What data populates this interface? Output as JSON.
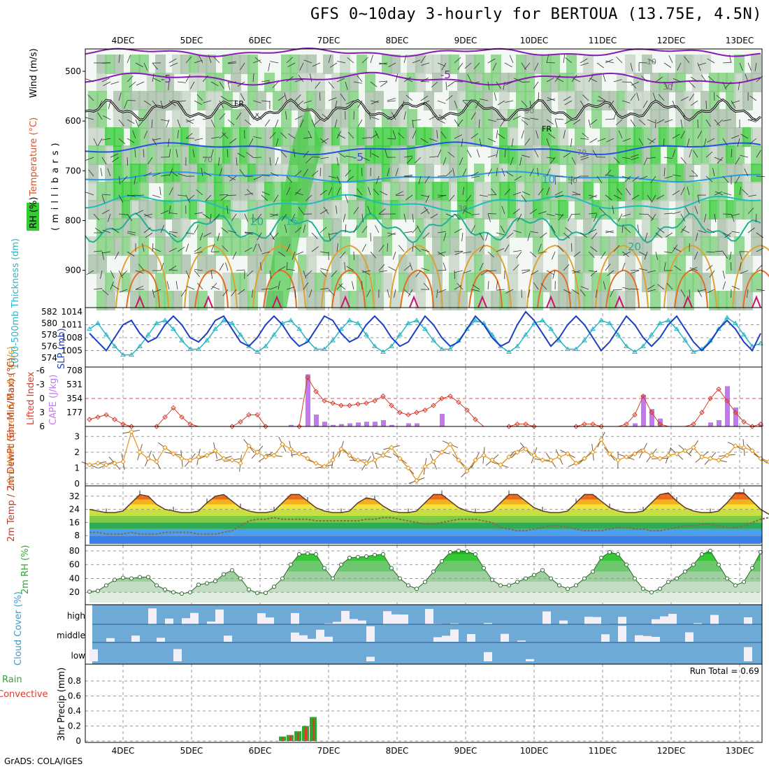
{
  "title": "GFS 0~10day 3-hourly for BERTOUA (13.75E, 4.5N)",
  "footer": "GrADS: COLA/IGES",
  "run_total_label": "Run Total = 0.69",
  "colors": {
    "rh_green": "#33cc33",
    "wind_purple": "#8a1ab8",
    "frz_black": "#000000",
    "slp_blue": "#1a3fbf",
    "thick_cyan": "#2bb5c6",
    "li_red": "#d83a2a",
    "cape_violet": "#c278f0",
    "wind10_orange": "#e0931a",
    "cloud_blue": "#6fa9d6",
    "precip_green": "#2ea82e",
    "precip_red": "#e03a2a"
  },
  "chart_data": [
    {
      "type": "heatmap",
      "id": "upper-air",
      "ylabel_parts": [
        "RH (%)",
        "Temperature (°C)",
        "Wind (m/s)"
      ],
      "ylabel_units": "(millibars)",
      "xticks": [
        "4DEC",
        "5DEC",
        "6DEC",
        "7DEC",
        "8DEC",
        "9DEC",
        "10DEC",
        "11DEC",
        "12DEC",
        "13DEC"
      ],
      "yticks": [
        500,
        600,
        700,
        800,
        900
      ],
      "contour_labels": [
        "-5",
        "-5",
        "FR",
        "FR",
        "-5",
        "10",
        "20",
        "15",
        "20",
        "30",
        "30",
        "50",
        "70",
        "70",
        "10",
        "30"
      ]
    },
    {
      "type": "line",
      "id": "slp-thickness",
      "ylabel_left": "1000-500mb Thickness (dm)",
      "ylabel_right": "SLP (mb)",
      "yticks_left": [
        574,
        576,
        578,
        580,
        582
      ],
      "yticks_right": [
        1005,
        1008,
        1011,
        1014
      ],
      "series": [
        {
          "name": "SLP (mb)",
          "values": [
            1009,
            1007,
            1005,
            1008,
            1011,
            1012,
            1009,
            1007,
            1008,
            1011,
            1013,
            1011,
            1008,
            1007,
            1009,
            1012,
            1013,
            1010,
            1007,
            1006,
            1008,
            1011,
            1013,
            1011,
            1008,
            1006,
            1007,
            1010,
            1013,
            1012,
            1009,
            1007,
            1008,
            1011,
            1013,
            1011,
            1008,
            1006,
            1007,
            1010,
            1013,
            1011,
            1008,
            1006,
            1007,
            1010,
            1013,
            1011,
            1008,
            1006,
            1007,
            1011,
            1014,
            1012,
            1009,
            1006,
            1008,
            1011,
            1013,
            1011,
            1008,
            1005,
            1007,
            1010,
            1013,
            1011,
            1008,
            1006,
            1008,
            1011,
            1013,
            1010,
            1007,
            1005,
            1007,
            1010,
            1012,
            1010,
            1007,
            1005,
            1009
          ]
        },
        {
          "name": "1000-500mb Thickness (dm)",
          "values": [
            579,
            580,
            578,
            576,
            574.5,
            574.5,
            576,
            578,
            580,
            580.5,
            579,
            577,
            575.5,
            575.5,
            577,
            579,
            580.5,
            580,
            578,
            576,
            575,
            576,
            578,
            580,
            580.5,
            579,
            577,
            575.5,
            575.5,
            577,
            579,
            580.5,
            580,
            578,
            576,
            575,
            576,
            578,
            580,
            580.5,
            579,
            577,
            575.5,
            575.5,
            577,
            579,
            580.5,
            580,
            578,
            576,
            575,
            576,
            578,
            580,
            580.5,
            579,
            577,
            575.5,
            575.5,
            577,
            579,
            580.5,
            580,
            578,
            576,
            575,
            576,
            578,
            580,
            580.5,
            579,
            577,
            575,
            575.5,
            577,
            579,
            581,
            580,
            578,
            576,
            576.5
          ]
        }
      ]
    },
    {
      "type": "bar",
      "id": "li-cape",
      "ylabel_left": "Lifted Index",
      "ylabel_right": "CAPE (J/kg)",
      "yticks_left": [
        -6,
        -3,
        0,
        3,
        6
      ],
      "yticks_right": [
        177,
        354,
        531,
        708
      ],
      "series": [
        {
          "name": "Lifted Index",
          "values": [
            4.5,
            4,
            3.5,
            4.5,
            5.5,
            6,
            6.5,
            7,
            6,
            4,
            2,
            4,
            5.5,
            6.5,
            7,
            7,
            6.5,
            6,
            5,
            3.5,
            3.5,
            6,
            7,
            7,
            7,
            6,
            -4.5,
            -1.5,
            0.5,
            1,
            1.5,
            1.5,
            1.2,
            1,
            0.5,
            -0.5,
            1.5,
            3,
            3.5,
            3,
            2.5,
            1.5,
            0,
            -0.5,
            0.8,
            2.5,
            4.5,
            6.5,
            7,
            6.5,
            6,
            5.5,
            5.5,
            6,
            6.5,
            7,
            7,
            6.5,
            6,
            5.5,
            5.5,
            6,
            6.5,
            6.5,
            5.5,
            3.5,
            -0.5,
            3,
            5.5,
            6.5,
            7,
            6.5,
            5.5,
            3,
            0,
            -2,
            0.5,
            3,
            5,
            6,
            5.5
          ]
        },
        {
          "name": "CAPE (J/kg)",
          "values": [
            0,
            0,
            0,
            0,
            0,
            0,
            0,
            0,
            0,
            0,
            0,
            0,
            0,
            0,
            0,
            0,
            0,
            0,
            0,
            0,
            0,
            0,
            0,
            0,
            20,
            0,
            660,
            150,
            60,
            20,
            30,
            40,
            50,
            60,
            60,
            80,
            20,
            0,
            40,
            40,
            0,
            0,
            160,
            0,
            0,
            0,
            0,
            0,
            0,
            0,
            0,
            0,
            0,
            0,
            0,
            0,
            0,
            0,
            0,
            0,
            0,
            0,
            0,
            0,
            0,
            40,
            400,
            220,
            100,
            0,
            0,
            0,
            0,
            0,
            50,
            80,
            510,
            240,
            0,
            0,
            20
          ]
        }
      ]
    },
    {
      "type": "line",
      "id": "wind10m",
      "ylabel": "10m Wind Speed & Barbs (m/s)",
      "yticks": [
        0,
        1,
        2,
        3
      ],
      "series": [
        {
          "name": "10m Wind Speed",
          "values": [
            1.2,
            1.3,
            1.2,
            1.3,
            1.4,
            3.3,
            2,
            1.6,
            1.4,
            2.3,
            1.9,
            1.6,
            1.5,
            1.7,
            1.8,
            2.1,
            1.6,
            1.5,
            1.3,
            2.4,
            2,
            1.7,
            1.8,
            2.5,
            2.2,
            1.9,
            1.6,
            1.3,
            1.1,
            1.5,
            2.2,
            1.8,
            1.5,
            1.3,
            1.5,
            1.8,
            2.3,
            1.6,
            1,
            0.2,
            1.1,
            1.4,
            2,
            2.5,
            1.5,
            0.8,
            1.5,
            1.8,
            1.5,
            1.2,
            1.7,
            2,
            2.2,
            1.8,
            1.5,
            1.5,
            1.7,
            1.9,
            1.3,
            1.6,
            2,
            2.8,
            1.9,
            1.5,
            1.7,
            1.9,
            2.1,
            1.8,
            1.6,
            1.8,
            1.9,
            2.1,
            2.3,
            1.7,
            1.6,
            1.5,
            1.8,
            2.4,
            2.3,
            2.1,
            1.6,
            1.4
          ]
        }
      ]
    },
    {
      "type": "area",
      "id": "temp2m",
      "ylabel": "2m Temp / 2m DewPt (6hr Min/Max) (°C)",
      "yticks": [
        8,
        16,
        24,
        32
      ],
      "series": [
        {
          "name": "2m Temp",
          "values": [
            24,
            23,
            22,
            22,
            23,
            28,
            33,
            32,
            27,
            24,
            23,
            22,
            22,
            23,
            28,
            32,
            33,
            29,
            25,
            23,
            22,
            22,
            23,
            28,
            33,
            33,
            29,
            25,
            23,
            22,
            22,
            23,
            28,
            31,
            30,
            26,
            23,
            22,
            22,
            23,
            28,
            33,
            33,
            29,
            25,
            23,
            22,
            22,
            23,
            28,
            33,
            33,
            29,
            25,
            23,
            22,
            22,
            23,
            28,
            33,
            33,
            29,
            25,
            23,
            22,
            22,
            23,
            28,
            33,
            34,
            29,
            25,
            23,
            22,
            22,
            23,
            28,
            34,
            34,
            29,
            24,
            21,
            20
          ]
        },
        {
          "name": "2m DewPt",
          "values": [
            10,
            10,
            9,
            9,
            9,
            10,
            9,
            9,
            9,
            10,
            10,
            10,
            10,
            9,
            9,
            9,
            10,
            11,
            14,
            17,
            18,
            18,
            19,
            18,
            18,
            18,
            18,
            17,
            17,
            17,
            17,
            17,
            17,
            18,
            18,
            19,
            19,
            18,
            17,
            16,
            15,
            15,
            16,
            17,
            18,
            18,
            18,
            17,
            16,
            13,
            12,
            11,
            11,
            12,
            13,
            14,
            14,
            13,
            12,
            11,
            11,
            11,
            12,
            13,
            13,
            12,
            12,
            11,
            11,
            12,
            13,
            14,
            14,
            15,
            15,
            14,
            13,
            13,
            14,
            16,
            18,
            19,
            18
          ]
        }
      ]
    },
    {
      "type": "area",
      "id": "rh2m",
      "ylabel": "2m RH (%)",
      "yticks": [
        20,
        40,
        60,
        80
      ],
      "series": [
        {
          "name": "2m RH",
          "values": [
            21,
            22,
            30,
            38,
            41,
            40,
            42,
            42,
            30,
            24,
            20,
            18,
            20,
            31,
            33,
            36,
            46,
            52,
            40,
            24,
            19,
            19,
            28,
            40,
            60,
            75,
            76,
            75,
            55,
            40,
            60,
            70,
            71,
            72,
            74,
            75,
            55,
            40,
            30,
            25,
            35,
            50,
            65,
            78,
            80,
            79,
            75,
            55,
            38,
            30,
            30,
            35,
            40,
            45,
            52,
            40,
            30,
            25,
            30,
            40,
            50,
            70,
            78,
            75,
            60,
            40,
            25,
            20,
            25,
            35,
            40,
            50,
            60,
            75,
            80,
            60,
            40,
            30,
            35,
            55,
            78
          ]
        }
      ]
    },
    {
      "type": "bar",
      "id": "cloud",
      "ylabel": "Cloud Cover (%)",
      "yticks": [
        "high",
        "middle",
        "low"
      ]
    },
    {
      "type": "bar",
      "id": "precip",
      "ylabel_parts": [
        "Total / Rain",
        "Convective"
      ],
      "ylabel_units": "3hr Precip (mm)",
      "yticks": [
        0,
        0.2,
        0.4,
        0.6,
        0.8
      ],
      "xticks": [
        "4DEC",
        "5DEC",
        "6DEC",
        "7DEC",
        "8DEC",
        "9DEC",
        "10DEC",
        "11DEC",
        "12DEC",
        "13DEC"
      ],
      "series": [
        {
          "name": "Total / Rain",
          "values": [
            0.06,
            0.08,
            0.13,
            0.2,
            0.32
          ]
        },
        {
          "name": "Convective",
          "values": [
            0.05,
            0.07,
            0.11,
            0.18,
            0.3
          ]
        }
      ]
    }
  ]
}
